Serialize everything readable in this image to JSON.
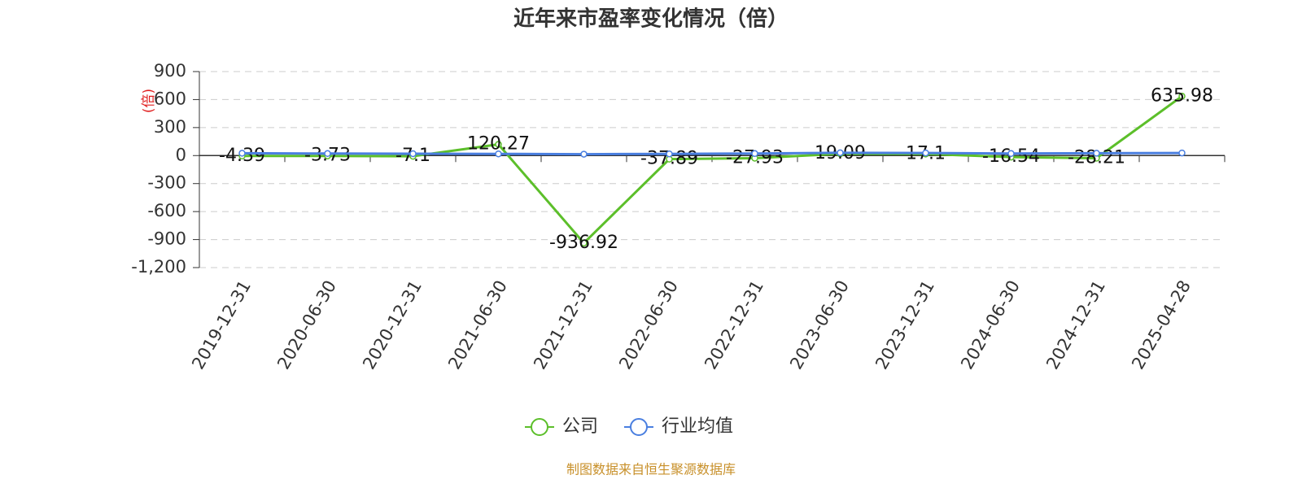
{
  "chart_data": {
    "type": "line",
    "title": "近年来市盈率变化情况（倍）",
    "y_label": "(倍)",
    "source": "制图数据来自恒生聚源数据库",
    "categories": [
      "2019-12-31",
      "2020-06-30",
      "2020-12-31",
      "2021-06-30",
      "2021-12-31",
      "2022-06-30",
      "2022-12-31",
      "2023-06-30",
      "2023-12-31",
      "2024-06-30",
      "2024-12-31",
      "2025-04-28"
    ],
    "series": [
      {
        "name": "公司",
        "color": "#5cbf2a",
        "values": [
          -4.39,
          -3.73,
          -7.1,
          120.27,
          -936.92,
          -37.89,
          -27.93,
          19.09,
          17.1,
          -16.54,
          -28.21,
          635.98
        ],
        "labels": true
      },
      {
        "name": "行业均值",
        "color": "#4a7fe0",
        "values": [
          25,
          22,
          20,
          18,
          15,
          18,
          22,
          30,
          28,
          22,
          25,
          28
        ],
        "labels": false
      }
    ],
    "ylim": [
      -1200,
      900
    ],
    "yticks": [
      {
        "value": -1200,
        "label": "-1,200"
      },
      -900,
      -600,
      -300,
      0,
      300,
      600,
      900
    ],
    "grid": true
  }
}
